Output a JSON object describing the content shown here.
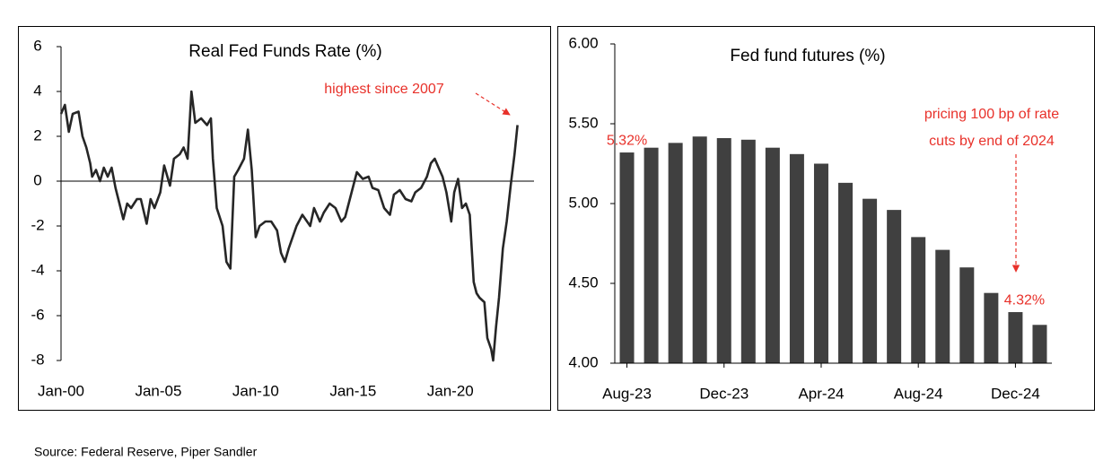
{
  "chart_data": [
    {
      "type": "line",
      "title": "Real Fed Funds Rate (%)",
      "color": "#262626",
      "x": [
        2000.0,
        2000.2,
        2000.4,
        2000.6,
        2000.9,
        2001.1,
        2001.3,
        2001.5,
        2001.6,
        2001.8,
        2002.0,
        2002.2,
        2002.4,
        2002.6,
        2002.8,
        2003.0,
        2003.2,
        2003.4,
        2003.6,
        2003.9,
        2004.1,
        2004.4,
        2004.6,
        2004.8,
        2005.1,
        2005.3,
        2005.6,
        2005.8,
        2006.1,
        2006.3,
        2006.5,
        2006.7,
        2006.9,
        2007.2,
        2007.5,
        2007.7,
        2007.8,
        2008.0,
        2008.3,
        2008.5,
        2008.7,
        2008.9,
        2009.1,
        2009.4,
        2009.6,
        2009.8,
        2010.0,
        2010.2,
        2010.5,
        2010.8,
        2011.1,
        2011.3,
        2011.5,
        2011.7,
        2012.1,
        2012.4,
        2012.8,
        2013.0,
        2013.3,
        2013.5,
        2013.8,
        2014.1,
        2014.4,
        2014.6,
        2014.9,
        2015.2,
        2015.5,
        2015.8,
        2016.0,
        2016.3,
        2016.6,
        2016.9,
        2017.1,
        2017.4,
        2017.7,
        2018.0,
        2018.2,
        2018.5,
        2018.8,
        2019.0,
        2019.2,
        2019.4,
        2019.6,
        2019.8,
        2020.05,
        2020.2,
        2020.4,
        2020.6,
        2020.8,
        2021.0,
        2021.2,
        2021.35,
        2021.5,
        2021.75,
        2021.9,
        2022.1,
        2022.2,
        2022.35,
        2022.5,
        2022.7,
        2022.9,
        2023.1,
        2023.3,
        2023.45
      ],
      "values": [
        3.0,
        3.4,
        2.2,
        3.0,
        3.1,
        2.0,
        1.5,
        0.8,
        0.2,
        0.5,
        0.0,
        0.6,
        0.2,
        0.6,
        -0.3,
        -1.0,
        -1.7,
        -1.0,
        -1.2,
        -0.8,
        -0.8,
        -1.9,
        -0.8,
        -1.2,
        -0.5,
        0.7,
        -0.2,
        1.0,
        1.2,
        1.5,
        1.0,
        4.0,
        2.6,
        2.8,
        2.5,
        2.8,
        1.0,
        -1.2,
        -2.0,
        -3.6,
        -3.9,
        0.2,
        0.5,
        1.0,
        2.3,
        0.5,
        -2.5,
        -2.0,
        -1.8,
        -1.8,
        -2.2,
        -3.2,
        -3.6,
        -3.0,
        -2.0,
        -1.5,
        -2.0,
        -1.2,
        -1.8,
        -1.4,
        -1.0,
        -1.2,
        -1.8,
        -1.6,
        -0.6,
        0.4,
        0.1,
        0.2,
        -0.3,
        -0.4,
        -1.2,
        -1.5,
        -0.6,
        -0.4,
        -0.8,
        -0.9,
        -0.5,
        -0.3,
        0.2,
        0.8,
        1.0,
        0.6,
        0.2,
        -0.5,
        -1.8,
        -0.5,
        0.1,
        -1.2,
        -1.0,
        -1.5,
        -4.5,
        -5.0,
        -5.2,
        -5.4,
        -7.0,
        -7.5,
        -8.0,
        -6.5,
        -5.2,
        -3.0,
        -1.8,
        -0.2,
        1.2,
        2.5
      ],
      "xlim": [
        2000,
        2024.3
      ],
      "xticks": [
        {
          "value": 2000,
          "label": "Jan-00"
        },
        {
          "value": 2005,
          "label": "Jan-05"
        },
        {
          "value": 2010,
          "label": "Jan-10"
        },
        {
          "value": 2015,
          "label": "Jan-15"
        },
        {
          "value": 2020,
          "label": "Jan-20"
        }
      ],
      "ylim": [
        -8,
        6
      ],
      "yticks": [
        -8,
        -6,
        -4,
        -2,
        0,
        2,
        4,
        6
      ],
      "annotation": "highest since 2007"
    },
    {
      "type": "bar",
      "title": "Fed fund futures (%)",
      "color": "#404040",
      "categories": [
        "Aug-23",
        null,
        null,
        null,
        "Dec-23",
        null,
        null,
        null,
        "Apr-24",
        null,
        null,
        null,
        "Aug-24",
        null,
        null,
        null,
        "Dec-24",
        null
      ],
      "values": [
        5.32,
        5.35,
        5.38,
        5.42,
        5.41,
        5.4,
        5.35,
        5.31,
        5.25,
        5.13,
        5.03,
        4.96,
        4.79,
        4.71,
        4.6,
        4.44,
        4.32,
        4.24
      ],
      "value_labels": [
        "5.32%",
        null,
        null,
        null,
        null,
        null,
        null,
        null,
        null,
        null,
        null,
        null,
        null,
        null,
        null,
        null,
        "4.32%",
        null
      ],
      "ylim": [
        4,
        6
      ],
      "yticks": [
        {
          "value": 4,
          "label": "4.00"
        },
        {
          "value": 4.5,
          "label": "4.50"
        },
        {
          "value": 5,
          "label": "5.00"
        },
        {
          "value": 5.5,
          "label": "5.50"
        },
        {
          "value": 6,
          "label": "6.00"
        }
      ],
      "annotation": [
        "pricing 100 bp of rate",
        "cuts by end of 2024"
      ]
    }
  ],
  "source": "Source: Federal Reserve, Piper Sandler"
}
